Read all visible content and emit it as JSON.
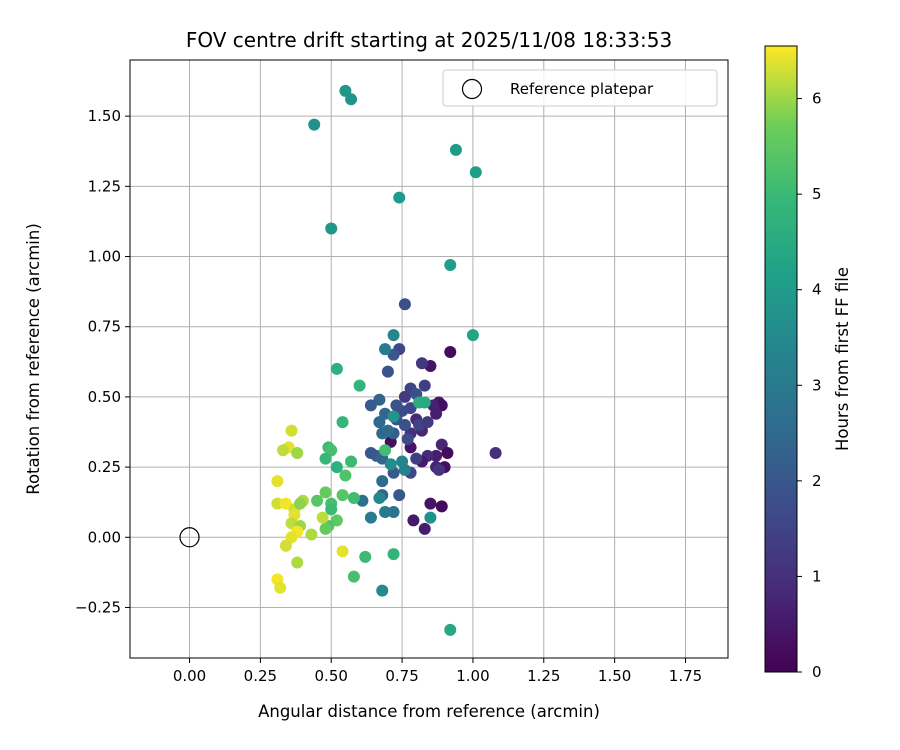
{
  "chart_data": {
    "type": "scatter",
    "title": "FOV centre drift starting at 2025/11/08 18:33:53",
    "xlabel": "Angular distance from reference (arcmin)",
    "ylabel": "Rotation from reference (arcmin)",
    "xlim": [
      -0.21,
      1.9
    ],
    "ylim": [
      -0.43,
      1.7
    ],
    "xticks": [
      "0.00",
      "0.25",
      "0.50",
      "0.75",
      "1.00",
      "1.25",
      "1.50",
      "1.75"
    ],
    "yticks": [
      "−0.25",
      "0.00",
      "0.25",
      "0.50",
      "0.75",
      "1.00",
      "1.25",
      "1.50"
    ],
    "grid": true,
    "legend": {
      "placement": "top-right",
      "label": "Reference platepar"
    },
    "reference_point": {
      "x": 0.0,
      "y": 0.0
    },
    "colorbar": {
      "label": "Hours from first FF file",
      "min": 0,
      "max": 6.55,
      "ticks": [
        "0",
        "1",
        "2",
        "3",
        "4",
        "5",
        "6"
      ],
      "colormap": "viridis"
    },
    "points": [
      {
        "x": 0.92,
        "y": 0.66,
        "h": 0.2
      },
      {
        "x": 0.85,
        "y": 0.61,
        "h": 0.4
      },
      {
        "x": 0.88,
        "y": 0.48,
        "h": 0.5
      },
      {
        "x": 0.89,
        "y": 0.47,
        "h": 0.3
      },
      {
        "x": 0.86,
        "y": 0.47,
        "h": 0.7
      },
      {
        "x": 0.87,
        "y": 0.44,
        "h": 0.6
      },
      {
        "x": 0.8,
        "y": 0.42,
        "h": 0.9
      },
      {
        "x": 0.82,
        "y": 0.38,
        "h": 0.8
      },
      {
        "x": 0.78,
        "y": 0.37,
        "h": 1.0
      },
      {
        "x": 0.71,
        "y": 0.34,
        "h": 0.3
      },
      {
        "x": 0.89,
        "y": 0.33,
        "h": 0.8
      },
      {
        "x": 0.78,
        "y": 0.32,
        "h": 0.4
      },
      {
        "x": 0.91,
        "y": 0.3,
        "h": 0.2
      },
      {
        "x": 0.87,
        "y": 0.29,
        "h": 0.6
      },
      {
        "x": 0.84,
        "y": 0.29,
        "h": 0.9
      },
      {
        "x": 0.82,
        "y": 0.27,
        "h": 0.5
      },
      {
        "x": 0.87,
        "y": 0.25,
        "h": 0.7
      },
      {
        "x": 0.9,
        "y": 0.25,
        "h": 0.3
      },
      {
        "x": 0.88,
        "y": 0.24,
        "h": 1.1
      },
      {
        "x": 1.08,
        "y": 0.3,
        "h": 1.0
      },
      {
        "x": 0.85,
        "y": 0.12,
        "h": 0.4
      },
      {
        "x": 0.89,
        "y": 0.11,
        "h": 0.2
      },
      {
        "x": 0.79,
        "y": 0.06,
        "h": 0.5
      },
      {
        "x": 0.83,
        "y": 0.03,
        "h": 0.6
      },
      {
        "x": 0.82,
        "y": 0.62,
        "h": 1.2
      },
      {
        "x": 0.83,
        "y": 0.54,
        "h": 1.4
      },
      {
        "x": 0.78,
        "y": 0.53,
        "h": 1.5
      },
      {
        "x": 0.76,
        "y": 0.5,
        "h": 1.3
      },
      {
        "x": 0.8,
        "y": 0.51,
        "h": 1.8
      },
      {
        "x": 0.78,
        "y": 0.46,
        "h": 1.6
      },
      {
        "x": 0.75,
        "y": 0.45,
        "h": 1.7
      },
      {
        "x": 0.73,
        "y": 0.47,
        "h": 1.9
      },
      {
        "x": 0.73,
        "y": 0.42,
        "h": 2.0
      },
      {
        "x": 0.76,
        "y": 0.4,
        "h": 1.8
      },
      {
        "x": 0.81,
        "y": 0.4,
        "h": 1.5
      },
      {
        "x": 0.84,
        "y": 0.41,
        "h": 1.3
      },
      {
        "x": 0.72,
        "y": 0.37,
        "h": 2.2
      },
      {
        "x": 0.77,
        "y": 0.35,
        "h": 1.7
      },
      {
        "x": 0.8,
        "y": 0.28,
        "h": 1.4
      },
      {
        "x": 0.78,
        "y": 0.23,
        "h": 1.6
      },
      {
        "x": 0.72,
        "y": 0.23,
        "h": 2.1
      },
      {
        "x": 0.68,
        "y": 0.28,
        "h": 2.4
      },
      {
        "x": 0.66,
        "y": 0.29,
        "h": 2.3
      },
      {
        "x": 0.64,
        "y": 0.3,
        "h": 2.0
      },
      {
        "x": 0.74,
        "y": 0.67,
        "h": 1.6
      },
      {
        "x": 0.76,
        "y": 0.83,
        "h": 1.8
      },
      {
        "x": 0.72,
        "y": 0.65,
        "h": 2.0
      },
      {
        "x": 0.7,
        "y": 0.59,
        "h": 1.9
      },
      {
        "x": 0.64,
        "y": 0.47,
        "h": 2.1
      },
      {
        "x": 0.67,
        "y": 0.49,
        "h": 2.3
      },
      {
        "x": 0.69,
        "y": 0.44,
        "h": 2.4
      },
      {
        "x": 0.67,
        "y": 0.41,
        "h": 2.5
      },
      {
        "x": 0.7,
        "y": 0.38,
        "h": 2.6
      },
      {
        "x": 0.68,
        "y": 0.37,
        "h": 2.5
      },
      {
        "x": 0.74,
        "y": 0.15,
        "h": 2.0
      },
      {
        "x": 0.68,
        "y": 0.15,
        "h": 2.4
      },
      {
        "x": 0.68,
        "y": 0.2,
        "h": 2.6
      },
      {
        "x": 0.61,
        "y": 0.13,
        "h": 2.7
      },
      {
        "x": 0.72,
        "y": 0.09,
        "h": 2.8
      },
      {
        "x": 0.69,
        "y": 0.09,
        "h": 3.0
      },
      {
        "x": 0.64,
        "y": 0.07,
        "h": 3.1
      },
      {
        "x": 0.69,
        "y": 0.67,
        "h": 3.1
      },
      {
        "x": 0.72,
        "y": 0.72,
        "h": 3.4
      },
      {
        "x": 0.76,
        "y": 0.24,
        "h": 3.2
      },
      {
        "x": 0.75,
        "y": 0.27,
        "h": 3.3
      },
      {
        "x": 0.71,
        "y": 0.26,
        "h": 3.6
      },
      {
        "x": 0.67,
        "y": 0.14,
        "h": 3.4
      },
      {
        "x": 0.68,
        "y": -0.19,
        "h": 3.5
      },
      {
        "x": 0.72,
        "y": 0.43,
        "h": 3.8
      },
      {
        "x": 0.81,
        "y": 0.48,
        "h": 4.6
      },
      {
        "x": 0.83,
        "y": 0.48,
        "h": 4.5
      },
      {
        "x": 0.85,
        "y": 0.07,
        "h": 3.7
      },
      {
        "x": 0.55,
        "y": 1.59,
        "h": 3.9
      },
      {
        "x": 0.57,
        "y": 1.56,
        "h": 3.8
      },
      {
        "x": 0.44,
        "y": 1.47,
        "h": 3.7
      },
      {
        "x": 0.94,
        "y": 1.38,
        "h": 4.0
      },
      {
        "x": 1.01,
        "y": 1.3,
        "h": 4.1
      },
      {
        "x": 0.74,
        "y": 1.21,
        "h": 4.0
      },
      {
        "x": 0.5,
        "y": 1.1,
        "h": 3.9
      },
      {
        "x": 0.92,
        "y": 0.97,
        "h": 4.1
      },
      {
        "x": 1.0,
        "y": 0.72,
        "h": 4.3
      },
      {
        "x": 0.52,
        "y": 0.6,
        "h": 4.7
      },
      {
        "x": 0.6,
        "y": 0.54,
        "h": 4.8
      },
      {
        "x": 0.54,
        "y": 0.41,
        "h": 4.9
      },
      {
        "x": 0.49,
        "y": 0.32,
        "h": 5.0
      },
      {
        "x": 0.5,
        "y": 0.31,
        "h": 5.2
      },
      {
        "x": 0.57,
        "y": 0.27,
        "h": 5.0
      },
      {
        "x": 0.48,
        "y": 0.28,
        "h": 4.9
      },
      {
        "x": 0.52,
        "y": 0.25,
        "h": 4.7
      },
      {
        "x": 0.55,
        "y": 0.22,
        "h": 5.3
      },
      {
        "x": 0.69,
        "y": 0.31,
        "h": 5.1
      },
      {
        "x": 0.54,
        "y": 0.15,
        "h": 5.4
      },
      {
        "x": 0.58,
        "y": 0.14,
        "h": 5.1
      },
      {
        "x": 0.48,
        "y": 0.16,
        "h": 5.6
      },
      {
        "x": 0.45,
        "y": 0.13,
        "h": 5.4
      },
      {
        "x": 0.5,
        "y": 0.12,
        "h": 5.2
      },
      {
        "x": 0.5,
        "y": 0.1,
        "h": 5.0
      },
      {
        "x": 0.52,
        "y": 0.06,
        "h": 5.5
      },
      {
        "x": 0.49,
        "y": 0.04,
        "h": 5.3
      },
      {
        "x": 0.48,
        "y": 0.03,
        "h": 5.6
      },
      {
        "x": 0.62,
        "y": -0.07,
        "h": 5.0
      },
      {
        "x": 0.72,
        "y": -0.06,
        "h": 4.8
      },
      {
        "x": 0.58,
        "y": -0.14,
        "h": 5.2
      },
      {
        "x": 0.92,
        "y": -0.33,
        "h": 4.4
      },
      {
        "x": 0.54,
        "y": -0.05,
        "h": 6.4
      },
      {
        "x": 0.36,
        "y": 0.38,
        "h": 6.3
      },
      {
        "x": 0.35,
        "y": 0.32,
        "h": 6.4
      },
      {
        "x": 0.33,
        "y": 0.31,
        "h": 6.2
      },
      {
        "x": 0.38,
        "y": 0.3,
        "h": 6.0
      },
      {
        "x": 0.31,
        "y": 0.2,
        "h": 6.4
      },
      {
        "x": 0.31,
        "y": 0.12,
        "h": 6.3
      },
      {
        "x": 0.34,
        "y": 0.12,
        "h": 6.5
      },
      {
        "x": 0.37,
        "y": 0.1,
        "h": 6.3
      },
      {
        "x": 0.4,
        "y": 0.13,
        "h": 6.1
      },
      {
        "x": 0.39,
        "y": 0.12,
        "h": 5.9
      },
      {
        "x": 0.37,
        "y": 0.08,
        "h": 6.4
      },
      {
        "x": 0.36,
        "y": 0.05,
        "h": 6.2
      },
      {
        "x": 0.39,
        "y": 0.04,
        "h": 6.0
      },
      {
        "x": 0.38,
        "y": 0.02,
        "h": 6.5
      },
      {
        "x": 0.43,
        "y": 0.01,
        "h": 6.1
      },
      {
        "x": 0.36,
        "y": 0.0,
        "h": 6.4
      },
      {
        "x": 0.47,
        "y": 0.07,
        "h": 6.2
      },
      {
        "x": 0.34,
        "y": -0.03,
        "h": 6.3
      },
      {
        "x": 0.38,
        "y": -0.09,
        "h": 6.1
      },
      {
        "x": 0.31,
        "y": -0.15,
        "h": 6.5
      },
      {
        "x": 0.32,
        "y": -0.18,
        "h": 6.4
      }
    ]
  }
}
